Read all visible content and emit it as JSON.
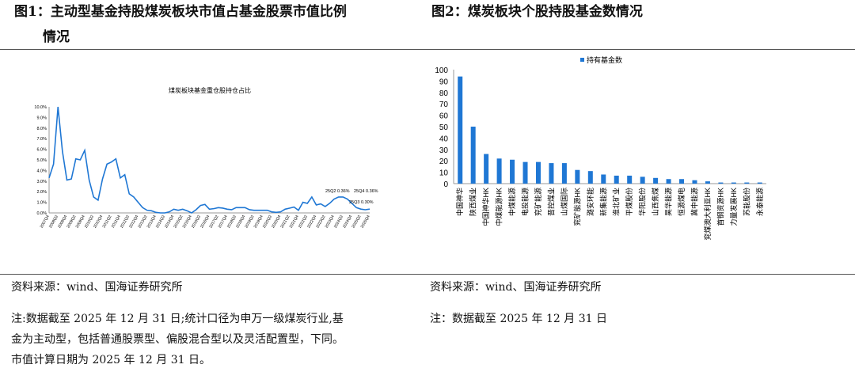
{
  "left": {
    "title_line1": "图1：主动型基金持股煤炭板块市值占基金股票市值比例",
    "title_line2": "情况",
    "source": "资料来源：wind、国海证券研究所",
    "note": [
      "注:数据截至 2025 年 12 月 31 日;统计口径为申万一级煤炭行业,基",
      "金为主动型，包括普通股票型、偏股混合型以及灵活配置型，下同。",
      "市值计算日期为 2025 年 12 月 31 日。"
    ]
  },
  "right": {
    "title": "图2：煤炭板块个股持股基金数情况",
    "source": "资料来源：wind、国海证券研究所",
    "note": "注：数据截至 2025 年 12 月 31 日"
  },
  "chart_data": [
    {
      "type": "line",
      "title": "煤炭板块基金重仓股持仓占比",
      "ylim": [
        0,
        10
      ],
      "y_ticks": [
        "0.0%",
        "1.0%",
        "2.0%",
        "3.0%",
        "4.0%",
        "5.0%",
        "6.0%",
        "7.0%",
        "8.0%",
        "9.0%",
        "10.0%"
      ],
      "x_ticks": [
        "2007Q4",
        "2008Q2",
        "2008Q4",
        "2009Q2",
        "2009Q4",
        "2010Q2",
        "2010Q4",
        "2011Q2",
        "2011Q4",
        "2012Q2",
        "2012Q4",
        "2013Q2",
        "2013Q4",
        "2014Q2",
        "2014Q4",
        "2015Q2",
        "2015Q4",
        "2016Q2",
        "2016Q4",
        "2017Q2",
        "2017Q4",
        "2018Q2",
        "2018Q4",
        "2019Q2",
        "2019Q4",
        "2020Q2",
        "2020Q4",
        "2021Q2",
        "2021Q4",
        "2022Q2",
        "2022Q4",
        "2023Q2",
        "2023Q4",
        "2024Q2",
        "2024Q4",
        "2025Q2",
        "2025Q4"
      ],
      "values": [
        3.3,
        4.6,
        10.0,
        5.8,
        3.1,
        3.2,
        5.1,
        5.0,
        5.9,
        3.1,
        1.5,
        1.2,
        3.2,
        4.6,
        4.8,
        5.1,
        3.3,
        3.6,
        1.8,
        1.5,
        1.0,
        0.5,
        0.25,
        0.2,
        0.05,
        0.0,
        0.0,
        0.1,
        0.35,
        0.25,
        0.35,
        0.2,
        0.0,
        0.3,
        0.7,
        0.8,
        0.35,
        0.4,
        0.5,
        0.45,
        0.35,
        0.3,
        0.5,
        0.5,
        0.5,
        0.3,
        0.25,
        0.25,
        0.25,
        0.25,
        0.1,
        0.05,
        0.1,
        0.35,
        0.45,
        0.55,
        0.25,
        1.0,
        0.9,
        1.5,
        0.75,
        0.85,
        0.6,
        0.9,
        1.3,
        1.5,
        1.5,
        1.3,
        0.9,
        0.5,
        0.36,
        0.3,
        0.36
      ],
      "annotations": [
        "25Q2 0.36%",
        "25Q4 0.36%",
        "25Q3 0.30%"
      ],
      "color": "#1f77d4"
    },
    {
      "type": "bar",
      "legend": "持有基金数",
      "ylim": [
        0,
        100
      ],
      "y_ticks": [
        "0",
        "10",
        "20",
        "30",
        "40",
        "50",
        "60",
        "70",
        "80",
        "90",
        "100"
      ],
      "categories": [
        "中国神华",
        "陕西煤业",
        "中国神华HK",
        "中煤能源HK",
        "中煤能源",
        "电投能源",
        "兖矿能源",
        "晋控煤业",
        "山煤国际",
        "兖矿能源HK",
        "潞安环能",
        "新集能源",
        "淮北矿业",
        "平煤股份",
        "华阳股份",
        "山西焦煤",
        "昊华能源",
        "恒源煤电",
        "冀中能源",
        "兖煤澳大利亚HK",
        "首钢资源HK",
        "力量发展HK",
        "苏能股份",
        "永泰能源"
      ],
      "values": [
        94,
        50,
        26,
        22,
        21,
        19,
        19,
        18,
        18,
        12,
        11,
        8,
        7,
        7,
        6,
        5,
        4,
        4,
        3,
        2,
        1,
        1,
        1,
        1
      ],
      "color": "#1f77d4"
    }
  ]
}
